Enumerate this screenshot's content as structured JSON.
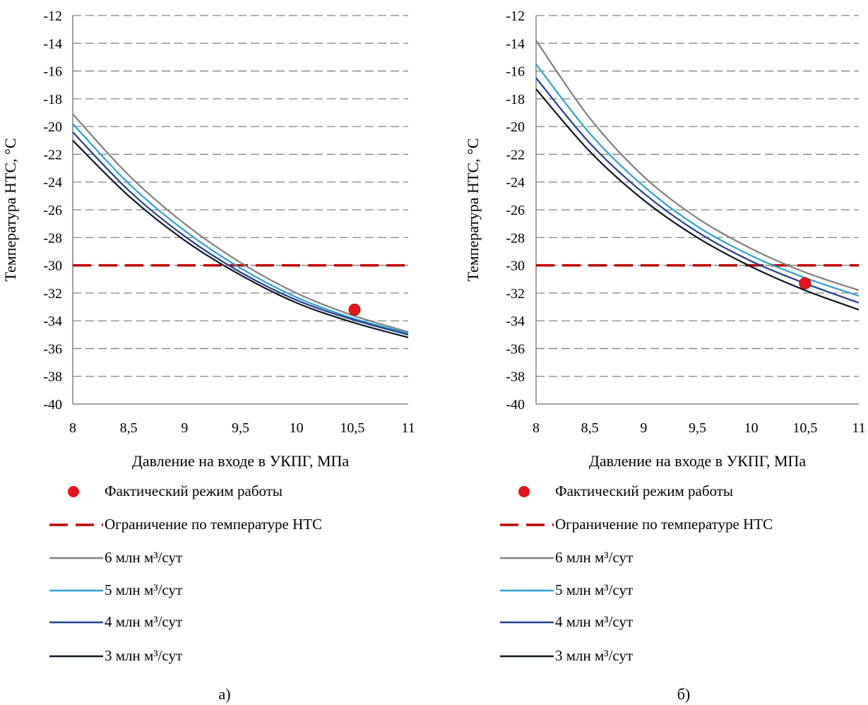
{
  "chart_data": [
    {
      "type": "line",
      "panel_label": "а)",
      "xlabel": "Давление на входе в УКПГ, МПа",
      "ylabel": "Температура НТС, °С",
      "xlim": [
        8,
        11
      ],
      "ylim": [
        -40,
        -12
      ],
      "x_ticks": [
        "8",
        "8,5",
        "9",
        "9,5",
        "10",
        "10,5",
        "11"
      ],
      "y_ticks": [
        "-12",
        "-14",
        "-16",
        "-18",
        "-20",
        "-22",
        "-24",
        "-26",
        "-28",
        "-30",
        "-32",
        "-34",
        "-36",
        "-38",
        "-40"
      ],
      "grid": "horizontal dashed",
      "legend_placement": "bottom",
      "point": {
        "name": "Фактический режим работы",
        "x": 10.52,
        "y": -33.2,
        "color": "#e8141c"
      },
      "limit": {
        "name": "Ограничение по температуре НТС",
        "y": -30,
        "color": "#c00000"
      },
      "series": [
        {
          "name": "6 млн м³/сут",
          "color": "#7f7f7f",
          "x": [
            8,
            8.5,
            9,
            9.5,
            10,
            10.5,
            11
          ],
          "y": [
            -19.1,
            -23.5,
            -27.0,
            -29.8,
            -32.0,
            -33.6,
            -34.8
          ]
        },
        {
          "name": "5 млн м³/сут",
          "color": "#2e9fd3",
          "x": [
            8,
            8.5,
            9,
            9.5,
            10,
            10.5,
            11
          ],
          "y": [
            -19.8,
            -24.1,
            -27.5,
            -30.2,
            -32.3,
            -33.8,
            -34.9
          ]
        },
        {
          "name": "4 млн м³/сут",
          "color": "#1f3f8f",
          "x": [
            8,
            8.5,
            9,
            9.5,
            10,
            10.5,
            11
          ],
          "y": [
            -20.4,
            -24.6,
            -27.9,
            -30.5,
            -32.5,
            -33.9,
            -35.0
          ]
        },
        {
          "name": "3 млн м³/сут",
          "color": "#0d1426",
          "x": [
            8,
            8.5,
            9,
            9.5,
            10,
            10.5,
            11
          ],
          "y": [
            -21.0,
            -25.0,
            -28.2,
            -30.7,
            -32.7,
            -34.1,
            -35.2
          ]
        }
      ]
    },
    {
      "type": "line",
      "panel_label": "б)",
      "xlabel": "Давление на входе в УКПГ, МПа",
      "ylabel": "Температура НТС, °С",
      "xlim": [
        8,
        11
      ],
      "ylim": [
        -40,
        -12
      ],
      "x_ticks": [
        "8",
        "8,5",
        "9",
        "9,5",
        "10",
        "10,5",
        "11"
      ],
      "y_ticks": [
        "-12",
        "-14",
        "-16",
        "-18",
        "-20",
        "-22",
        "-24",
        "-26",
        "-28",
        "-30",
        "-32",
        "-34",
        "-36",
        "-38",
        "-40"
      ],
      "grid": "horizontal dashed",
      "legend_placement": "bottom",
      "point": {
        "name": "Фактический режим работы",
        "x": 10.5,
        "y": -31.3,
        "color": "#e8141c"
      },
      "limit": {
        "name": "Ограничение по температуре НТС",
        "y": -30,
        "color": "#c00000"
      },
      "series": [
        {
          "name": "6 млн м³/сут",
          "color": "#7f7f7f",
          "x": [
            8,
            8.5,
            9,
            9.5,
            10,
            10.5,
            11
          ],
          "y": [
            -13.8,
            -19.4,
            -23.6,
            -26.6,
            -28.8,
            -30.5,
            -31.8
          ]
        },
        {
          "name": "5 млн м³/сут",
          "color": "#2e9fd3",
          "x": [
            8,
            8.5,
            9,
            9.5,
            10,
            10.5,
            11
          ],
          "y": [
            -15.5,
            -20.5,
            -24.3,
            -27.2,
            -29.3,
            -30.9,
            -32.2
          ]
        },
        {
          "name": "4 млн м³/сут",
          "color": "#1f3f8f",
          "x": [
            8,
            8.5,
            9,
            9.5,
            10,
            10.5,
            11
          ],
          "y": [
            -16.5,
            -21.2,
            -24.8,
            -27.6,
            -29.7,
            -31.3,
            -32.7
          ]
        },
        {
          "name": "3 млн м³/сут",
          "color": "#0d1426",
          "x": [
            8,
            8.5,
            9,
            9.5,
            10,
            10.5,
            11
          ],
          "y": [
            -17.3,
            -21.8,
            -25.3,
            -28.0,
            -30.1,
            -31.8,
            -33.2
          ]
        }
      ]
    }
  ]
}
